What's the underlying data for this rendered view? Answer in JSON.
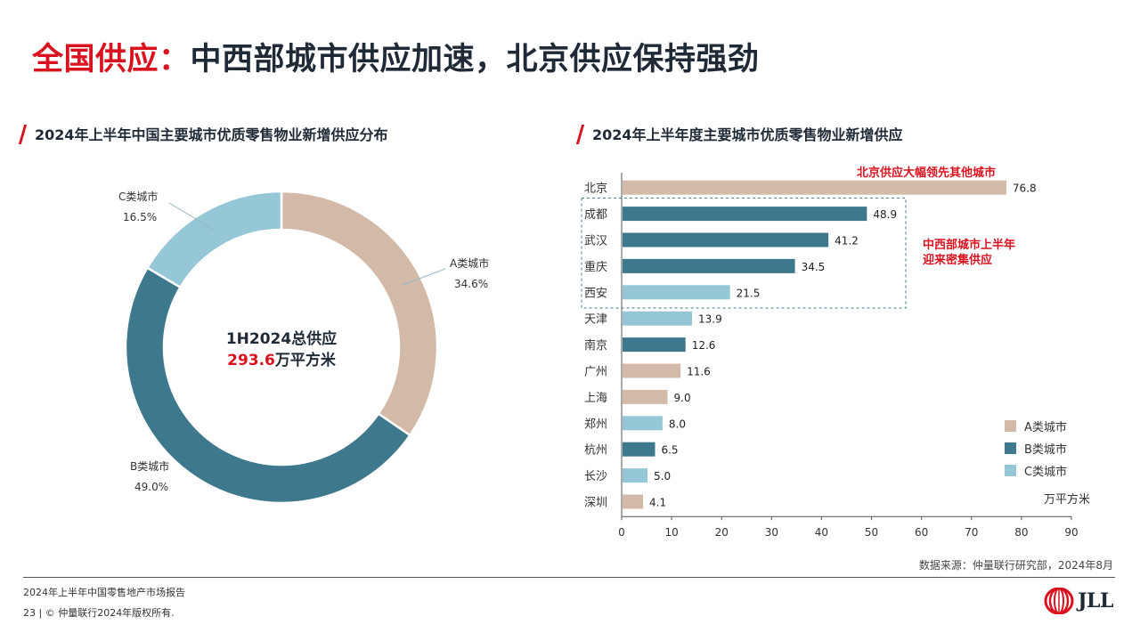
{
  "title": {
    "highlight": "全国供应：",
    "rest": "中西部城市供应加速，北京供应保持强劲"
  },
  "left": {
    "subtitle": "2024年上半年中国主要城市优质零售物业新增供应分布",
    "center_line1": "1H2024总供应",
    "center_value": "293.6",
    "center_unit": "万平方米"
  },
  "right": {
    "subtitle": "2024年上半年度主要城市优质零售物业新增供应",
    "annotation_beijing": "北京供应大幅领先其他城市",
    "annotation_central_1": "中西部城市上半年",
    "annotation_central_2": "迎来密集供应",
    "unit": "万平方米"
  },
  "legend": [
    {
      "label": "A类城市",
      "color": "#d2b9a8"
    },
    {
      "label": "B类城市",
      "color": "#3e788c"
    },
    {
      "label": "C类城市",
      "color": "#95c7d6"
    }
  ],
  "colors": {
    "A": "#d2b9a8",
    "B": "#3e788c",
    "C": "#95c7d6",
    "accent": "#d9121f"
  },
  "chart_data": [
    {
      "type": "pie",
      "categories": [
        "A类城市",
        "B类城市",
        "C类城市"
      ],
      "values": [
        34.6,
        49.0,
        16.5
      ],
      "labels": [
        "34.6%",
        "49.0%",
        "16.5%"
      ]
    },
    {
      "type": "bar",
      "orientation": "horizontal",
      "categories": [
        "北京",
        "成都",
        "武汉",
        "重庆",
        "西安",
        "天津",
        "南京",
        "广州",
        "上海",
        "郑州",
        "杭州",
        "长沙",
        "深圳"
      ],
      "values": [
        76.8,
        48.9,
        41.2,
        34.5,
        21.5,
        13.9,
        12.6,
        11.6,
        9.0,
        8.0,
        6.5,
        5.0,
        4.1
      ],
      "value_labels": [
        "76.8",
        "48.9",
        "41.2",
        "34.5",
        "21.5",
        "13.9",
        "12.6",
        "11.6",
        "9.0",
        "8.0",
        "6.5",
        "5.0",
        "4.1"
      ],
      "city_class": [
        "A",
        "B",
        "B",
        "B",
        "C",
        "C",
        "B",
        "A",
        "A",
        "C",
        "B",
        "C",
        "A"
      ],
      "xlim": [
        0,
        90
      ],
      "xticks": [
        "0",
        "10",
        "20",
        "30",
        "40",
        "50",
        "60",
        "70",
        "80",
        "90"
      ],
      "grid": false
    }
  ],
  "footer": {
    "source": "数据来源：仲量联行研究部，2024年8月",
    "report": "2024年上半年中国零售地产市场报告",
    "copyright": "23 | © 仲量联行2024年版权所有.",
    "logo": "JLL"
  }
}
